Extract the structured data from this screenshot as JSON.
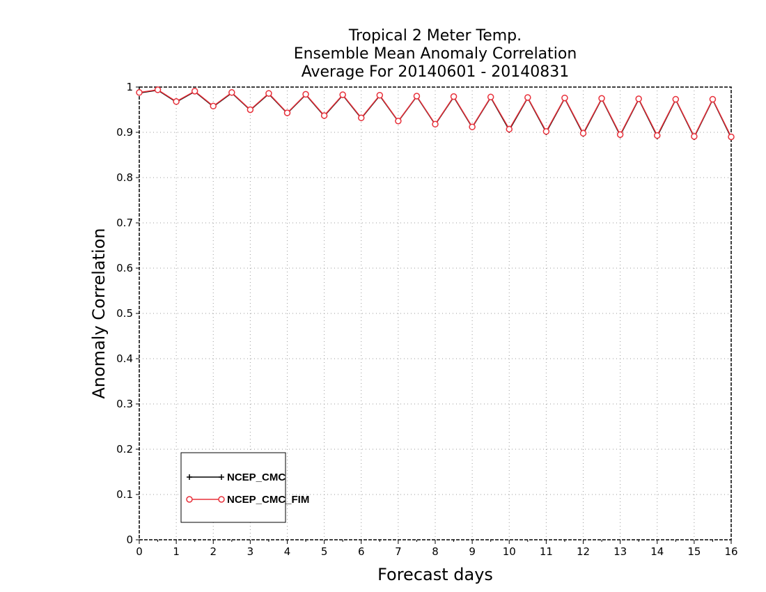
{
  "chart_data": {
    "type": "line",
    "title": [
      "Tropical 2 Meter Temp.",
      "Ensemble Mean Anomaly Correlation",
      "Average For 20140601 - 20140831"
    ],
    "xlabel": "Forecast days",
    "ylabel": "Anomaly Correlation",
    "xlim": [
      0,
      16
    ],
    "ylim": [
      0,
      1
    ],
    "xticks": [
      0,
      1,
      2,
      3,
      4,
      5,
      6,
      7,
      8,
      9,
      10,
      11,
      12,
      13,
      14,
      15,
      16
    ],
    "yticks": [
      0,
      0.1,
      0.2,
      0.3,
      0.4,
      0.5,
      0.6,
      0.7,
      0.8,
      0.9,
      1
    ],
    "ytick_labels": [
      "0",
      "0.1",
      "0.2",
      "0.3",
      "0.4",
      "0.5",
      "0.6",
      "0.7",
      "0.8",
      "0.9",
      "1"
    ],
    "grid": true,
    "legend_position": "bottom-left",
    "x": [
      0,
      0.5,
      1,
      1.5,
      2,
      2.5,
      3,
      3.5,
      4,
      4.5,
      5,
      5.5,
      6,
      6.5,
      7,
      7.5,
      8,
      8.5,
      9,
      9.5,
      10,
      10.5,
      11,
      11.5,
      12,
      12.5,
      13,
      13.5,
      14,
      14.5,
      15,
      15.5,
      16
    ],
    "series": [
      {
        "name": "NCEP_CMC",
        "color": "#000000",
        "marker": "cross",
        "values": [
          0.987,
          0.993,
          0.967,
          0.99,
          0.957,
          0.987,
          0.949,
          0.985,
          0.942,
          0.983,
          0.936,
          0.982,
          0.931,
          0.981,
          0.924,
          0.979,
          0.917,
          0.978,
          0.911,
          0.977,
          0.905,
          0.976,
          0.9,
          0.975,
          0.896,
          0.974,
          0.893,
          0.973,
          0.891,
          0.972,
          0.889,
          0.972,
          0.888
        ]
      },
      {
        "name": "NCEP_CMC_FIM",
        "color": "#e8303a",
        "marker": "circle",
        "values": [
          0.988,
          0.994,
          0.968,
          0.991,
          0.958,
          0.988,
          0.95,
          0.986,
          0.943,
          0.984,
          0.937,
          0.983,
          0.932,
          0.982,
          0.925,
          0.98,
          0.918,
          0.979,
          0.912,
          0.978,
          0.907,
          0.977,
          0.902,
          0.976,
          0.898,
          0.975,
          0.895,
          0.974,
          0.893,
          0.973,
          0.891,
          0.973,
          0.89
        ]
      }
    ]
  }
}
